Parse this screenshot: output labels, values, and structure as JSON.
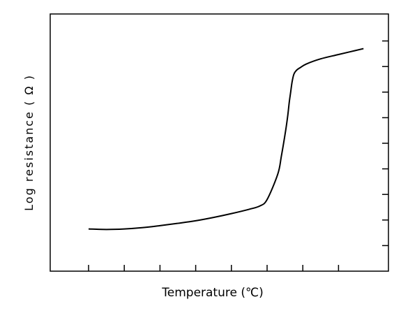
{
  "chart_data": {
    "type": "line",
    "title": "",
    "xlabel": "Temperature (℃)",
    "ylabel": "Log resistance ( Ω )",
    "xlim": [
      0,
      9
    ],
    "ylim": [
      0,
      9
    ],
    "x_ticks": [
      1,
      2,
      3,
      4,
      5,
      6,
      7,
      8
    ],
    "y_ticks": [
      1,
      2,
      3,
      4,
      5,
      6,
      7,
      8,
      9
    ],
    "tick_labels_shown": false,
    "grid": false,
    "legend": "none",
    "line_color": "#000000",
    "series": [
      {
        "x": [
          1.0,
          1.5,
          2.0,
          2.5,
          3.0,
          3.5,
          4.0,
          4.5,
          5.0,
          5.5,
          5.8,
          6.0,
          6.3,
          6.4,
          6.52,
          6.58,
          6.62,
          6.66,
          6.7,
          6.75,
          6.82,
          6.92,
          7.1,
          7.5,
          8.0,
          8.7
        ],
        "y": [
          1.65,
          1.63,
          1.65,
          1.7,
          1.78,
          1.87,
          1.97,
          2.1,
          2.25,
          2.42,
          2.55,
          2.8,
          3.8,
          4.5,
          5.5,
          6.1,
          6.6,
          7.0,
          7.4,
          7.7,
          7.85,
          7.95,
          8.1,
          8.3,
          8.47,
          8.7
        ]
      }
    ]
  }
}
